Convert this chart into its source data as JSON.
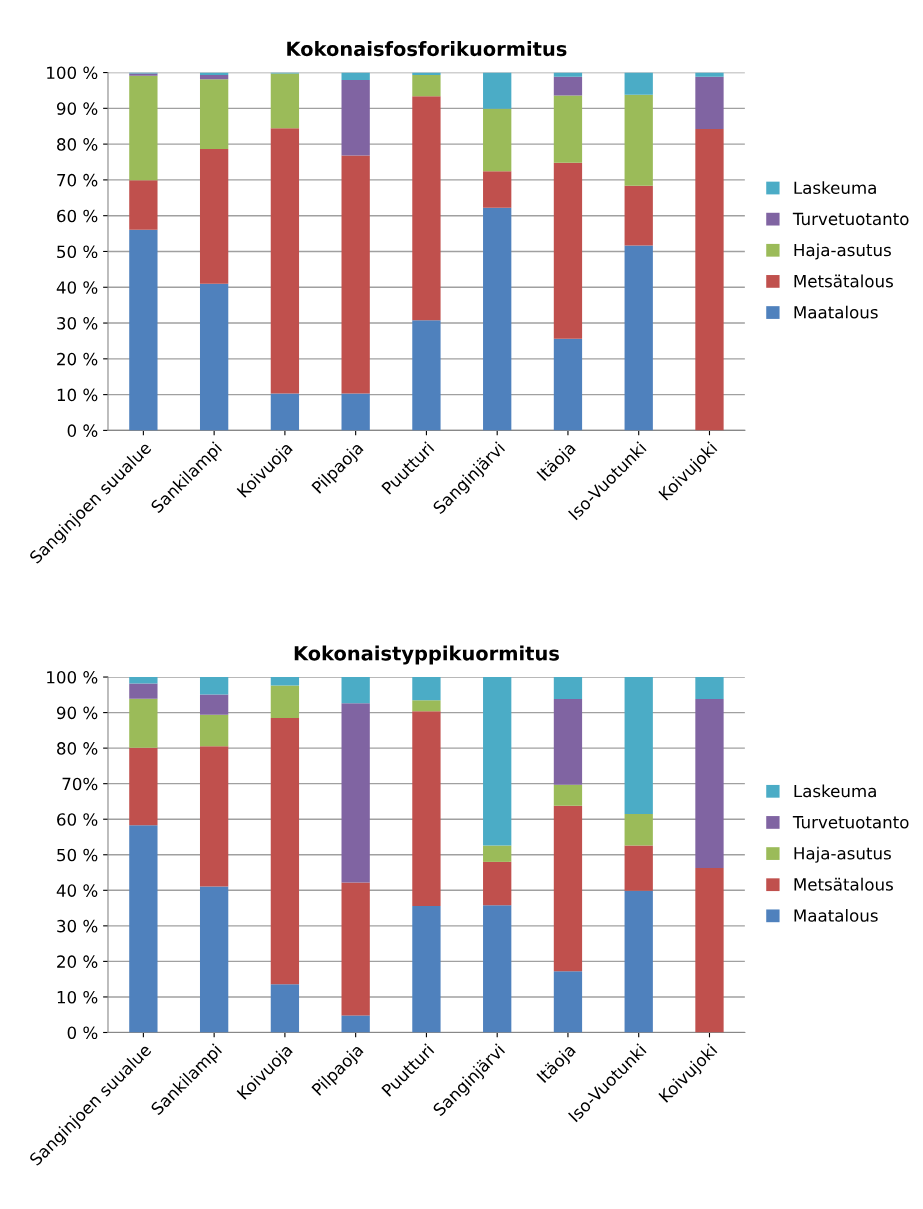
{
  "chart_data": [
    {
      "type": "bar",
      "title": "Kokonaisfosforikuormitus",
      "stacked": true,
      "grid": "y",
      "legend": "right",
      "categories": [
        "Sanginjoen suualue",
        "Sankilampi",
        "Koivuoja",
        "Pilpaoja",
        "Puutturi",
        "Sanginjärvi",
        "Itäoja",
        "Iso-Vuotunki",
        "Koivujoki"
      ],
      "ylim": [
        0,
        100
      ],
      "yticks": [
        {
          "value": 0,
          "label": "0 %"
        },
        {
          "value": 10,
          "label": "10 %"
        },
        {
          "value": 20,
          "label": "20 %"
        },
        {
          "value": 30,
          "label": "30 %"
        },
        {
          "value": 40,
          "label": "40 %"
        },
        {
          "value": 50,
          "label": "50 %"
        },
        {
          "value": 60,
          "label": "60 %"
        },
        {
          "value": 70,
          "label": "70 %"
        },
        {
          "value": 80,
          "label": "80 %"
        },
        {
          "value": 90,
          "label": "90 %"
        },
        {
          "value": 100,
          "label": "100 %"
        }
      ],
      "series": [
        {
          "name": "Maatalous",
          "color": "#4f81bd",
          "values": [
            56.1,
            41.0,
            10.3,
            10.3,
            30.8,
            62.2,
            25.6,
            51.7,
            0
          ]
        },
        {
          "name": "Metsätalous",
          "color": "#c0504d",
          "values": [
            13.8,
            37.6,
            74.1,
            66.5,
            62.6,
            10.2,
            49.2,
            16.7,
            84.2
          ]
        },
        {
          "name": "Haja-asutus",
          "color": "#9bbb59",
          "values": [
            29.2,
            19.5,
            15.3,
            0,
            5.9,
            17.5,
            18.8,
            25.4,
            0
          ]
        },
        {
          "name": "Turvetuotanto",
          "color": "#8064a2",
          "values": [
            0.6,
            1.2,
            0,
            21.1,
            0,
            0,
            5.2,
            0,
            14.6
          ]
        },
        {
          "name": "Laskeuma",
          "color": "#4bacc6",
          "values": [
            0.3,
            0.7,
            0.3,
            2.1,
            0.7,
            10.1,
            1.2,
            6.2,
            1.2
          ]
        }
      ]
    },
    {
      "type": "bar",
      "title": "Kokonaistyppikuormitus",
      "stacked": true,
      "grid": "y",
      "legend": "right",
      "categories": [
        "Sanginjoen suualue",
        "Sankilampi",
        "Koivuoja",
        "Pilpaoja",
        "Puutturi",
        "Sanginjärvi",
        "Itäoja",
        "Iso-Vuotunki",
        "Koivujoki"
      ],
      "ylim": [
        0,
        100
      ],
      "yticks": [
        {
          "value": 0,
          "label": "0 %"
        },
        {
          "value": 10,
          "label": "10 %"
        },
        {
          "value": 20,
          "label": "20 %"
        },
        {
          "value": 30,
          "label": "30 %"
        },
        {
          "value": 40,
          "label": "40 %"
        },
        {
          "value": 50,
          "label": "50 %"
        },
        {
          "value": 60,
          "label": "60 %"
        },
        {
          "value": 70,
          "label": "70%"
        },
        {
          "value": 80,
          "label": "80 %"
        },
        {
          "value": 90,
          "label": "90 %"
        },
        {
          "value": 100,
          "label": "100 %"
        }
      ],
      "series": [
        {
          "name": "Maatalous",
          "color": "#4f81bd",
          "values": [
            58.3,
            41.1,
            13.6,
            4.8,
            35.6,
            35.8,
            17.2,
            39.9,
            0
          ]
        },
        {
          "name": "Metsätalous",
          "color": "#c0504d",
          "values": [
            21.8,
            39.4,
            74.9,
            37.4,
            54.8,
            12.2,
            46.6,
            12.7,
            46.3
          ]
        },
        {
          "name": "Haja-asutus",
          "color": "#9bbb59",
          "values": [
            13.8,
            8.9,
            9.1,
            0,
            3.1,
            4.6,
            5.9,
            8.9,
            0
          ]
        },
        {
          "name": "Turvetuotanto",
          "color": "#8064a2",
          "values": [
            4.3,
            5.7,
            0,
            50.4,
            0,
            0,
            24.1,
            0,
            47.5
          ]
        },
        {
          "name": "Laskeuma",
          "color": "#4bacc6",
          "values": [
            1.8,
            4.9,
            2.4,
            7.4,
            6.5,
            47.4,
            6.2,
            38.5,
            6.2
          ]
        }
      ]
    }
  ]
}
